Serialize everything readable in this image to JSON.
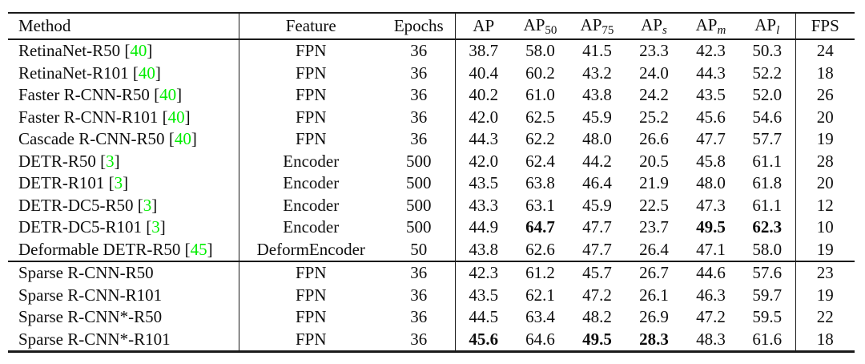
{
  "page": {
    "background": "#ffffff"
  },
  "table": {
    "citation_color": "#00ee00",
    "text_color": "#0e0e0e",
    "rule_color": "#1a1a1a",
    "headers": {
      "method": "Method",
      "feature": "Feature",
      "epochs": "Epochs",
      "metrics": [
        {
          "base": "AP",
          "sub": "",
          "italic_sub": false
        },
        {
          "base": "AP",
          "sub": "50",
          "italic_sub": false
        },
        {
          "base": "AP",
          "sub": "75",
          "italic_sub": false
        },
        {
          "base": "AP",
          "sub": "s",
          "italic_sub": true
        },
        {
          "base": "AP",
          "sub": "m",
          "italic_sub": true
        },
        {
          "base": "AP",
          "sub": "l",
          "italic_sub": true
        }
      ],
      "fps": "FPS"
    },
    "groups": [
      {
        "rows": [
          {
            "method": "RetinaNet-R50",
            "cite": "40",
            "feature": "FPN",
            "epochs": "36",
            "metrics": [
              "38.7",
              "58.0",
              "41.5",
              "23.3",
              "42.3",
              "50.3"
            ],
            "bold": [],
            "fps": "24"
          },
          {
            "method": "RetinaNet-R101",
            "cite": "40",
            "feature": "FPN",
            "epochs": "36",
            "metrics": [
              "40.4",
              "60.2",
              "43.2",
              "24.0",
              "44.3",
              "52.2"
            ],
            "bold": [],
            "fps": "18"
          },
          {
            "method": "Faster R-CNN-R50",
            "cite": "40",
            "feature": "FPN",
            "epochs": "36",
            "metrics": [
              "40.2",
              "61.0",
              "43.8",
              "24.2",
              "43.5",
              "52.0"
            ],
            "bold": [],
            "fps": "26"
          },
          {
            "method": "Faster R-CNN-R101",
            "cite": "40",
            "feature": "FPN",
            "epochs": "36",
            "metrics": [
              "42.0",
              "62.5",
              "45.9",
              "25.2",
              "45.6",
              "54.6"
            ],
            "bold": [],
            "fps": "20"
          },
          {
            "method": "Cascade R-CNN-R50",
            "cite": "40",
            "feature": "FPN",
            "epochs": "36",
            "metrics": [
              "44.3",
              "62.2",
              "48.0",
              "26.6",
              "47.7",
              "57.7"
            ],
            "bold": [],
            "fps": "19"
          },
          {
            "method": "DETR-R50",
            "cite": "3",
            "feature": "Encoder",
            "epochs": "500",
            "metrics": [
              "42.0",
              "62.4",
              "44.2",
              "20.5",
              "45.8",
              "61.1"
            ],
            "bold": [],
            "fps": "28"
          },
          {
            "method": "DETR-R101",
            "cite": "3",
            "feature": "Encoder",
            "epochs": "500",
            "metrics": [
              "43.5",
              "63.8",
              "46.4",
              "21.9",
              "48.0",
              "61.8"
            ],
            "bold": [],
            "fps": "20"
          },
          {
            "method": "DETR-DC5-R50",
            "cite": "3",
            "feature": "Encoder",
            "epochs": "500",
            "metrics": [
              "43.3",
              "63.1",
              "45.9",
              "22.5",
              "47.3",
              "61.1"
            ],
            "bold": [],
            "fps": "12"
          },
          {
            "method": "DETR-DC5-R101",
            "cite": "3",
            "feature": "Encoder",
            "epochs": "500",
            "metrics": [
              "44.9",
              "64.7",
              "47.7",
              "23.7",
              "49.5",
              "62.3"
            ],
            "bold": [
              1,
              4,
              5
            ],
            "fps": "10"
          },
          {
            "method": "Deformable DETR-R50",
            "cite": "45",
            "feature": "DeformEncoder",
            "epochs": "50",
            "metrics": [
              "43.8",
              "62.6",
              "47.7",
              "26.4",
              "47.1",
              "58.0"
            ],
            "bold": [],
            "fps": "19"
          }
        ]
      },
      {
        "rows": [
          {
            "method": "Sparse R-CNN-R50",
            "cite": null,
            "feature": "FPN",
            "epochs": "36",
            "metrics": [
              "42.3",
              "61.2",
              "45.7",
              "26.7",
              "44.6",
              "57.6"
            ],
            "bold": [],
            "fps": "23"
          },
          {
            "method": "Sparse R-CNN-R101",
            "cite": null,
            "feature": "FPN",
            "epochs": "36",
            "metrics": [
              "43.5",
              "62.1",
              "47.2",
              "26.1",
              "46.3",
              "59.7"
            ],
            "bold": [],
            "fps": "19"
          },
          {
            "method": "Sparse R-CNN*-R50",
            "cite": null,
            "feature": "FPN",
            "epochs": "36",
            "metrics": [
              "44.5",
              "63.4",
              "48.2",
              "26.9",
              "47.2",
              "59.5"
            ],
            "bold": [],
            "fps": "22"
          },
          {
            "method": "Sparse R-CNN*-R101",
            "cite": null,
            "feature": "FPN",
            "epochs": "36",
            "metrics": [
              "45.6",
              "64.6",
              "49.5",
              "28.3",
              "48.3",
              "61.6"
            ],
            "bold": [
              0,
              2,
              3
            ],
            "fps": "18"
          }
        ]
      }
    ]
  }
}
